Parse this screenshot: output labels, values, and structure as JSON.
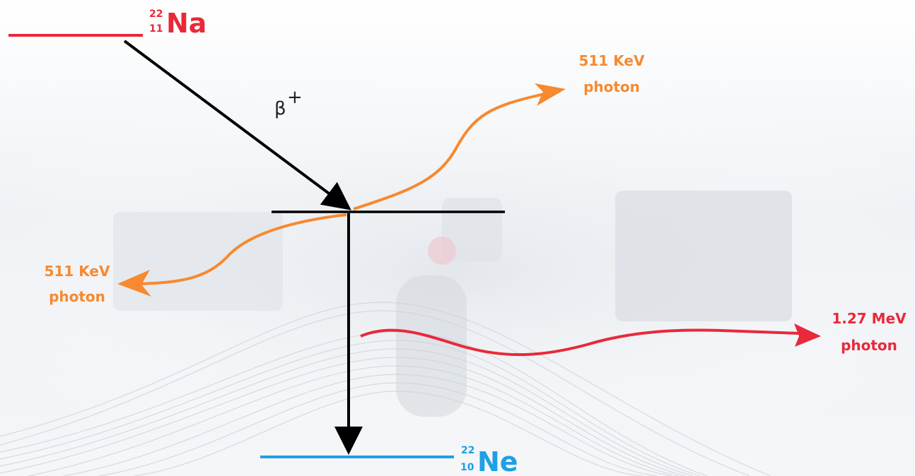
{
  "colors": {
    "sodium": "#e8293a",
    "neon": "#1ea0e6",
    "orange_photon": "#f7892f",
    "red_photon": "#e8293a",
    "arrows": "#000000"
  },
  "parent_nucleus": {
    "mass_number": "22",
    "atomic_number": "11",
    "symbol": "Na"
  },
  "daughter_nucleus": {
    "mass_number": "22",
    "atomic_number": "10",
    "symbol": "Ne"
  },
  "decay": {
    "label": "β",
    "superscript": "+"
  },
  "photons": {
    "annihilation_right": {
      "energy": "511 KeV",
      "word": "photon"
    },
    "annihilation_left": {
      "energy": "511 KeV",
      "word": "photon"
    },
    "gamma": {
      "energy": "1.27 MeV",
      "word": "photon"
    }
  }
}
